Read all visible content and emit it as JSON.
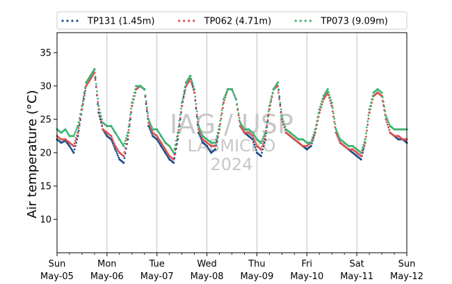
{
  "chart_data": {
    "type": "scatter",
    "title": "",
    "xlabel": "",
    "ylabel": "Air temperature (°C)",
    "xlim": [
      "2024-05-05 00:00",
      "2024-05-12 00:00"
    ],
    "ylim": [
      5,
      38
    ],
    "yticks": [
      10,
      15,
      20,
      25,
      30,
      35
    ],
    "xticks": [
      {
        "day": "Sun",
        "date": "May-05"
      },
      {
        "day": "Mon",
        "date": "May-06"
      },
      {
        "day": "Tue",
        "date": "May-07"
      },
      {
        "day": "Wed",
        "date": "May-08"
      },
      {
        "day": "Thu",
        "date": "May-09"
      },
      {
        "day": "Fri",
        "date": "May-10"
      },
      {
        "day": "Sat",
        "date": "May-11"
      },
      {
        "day": "Sun",
        "date": "May-12"
      }
    ],
    "grid": "vertical",
    "legend": "top",
    "watermark": [
      "IAG / USP",
      "LABMICRO",
      "2024"
    ],
    "series": [
      {
        "name": "TP131 (1.45m)",
        "color": "#1f4e8c",
        "x": [
          "2024-05-05 00:00",
          "2024-05-05 02:00",
          "2024-05-05 04:00",
          "2024-05-05 06:00",
          "2024-05-05 08:00",
          "2024-05-05 10:00",
          "2024-05-05 12:00",
          "2024-05-05 14:00",
          "2024-05-05 16:00",
          "2024-05-05 18:00",
          "2024-05-05 20:00",
          "2024-05-05 22:00",
          "2024-05-06 00:00",
          "2024-05-06 02:00",
          "2024-05-06 04:00",
          "2024-05-06 06:00",
          "2024-05-06 08:00",
          "2024-05-06 10:00",
          "2024-05-06 12:00",
          "2024-05-06 14:00",
          "2024-05-06 16:00",
          "2024-05-06 18:00",
          "2024-05-06 20:00",
          "2024-05-06 22:00",
          "2024-05-07 00:00",
          "2024-05-07 02:00",
          "2024-05-07 04:00",
          "2024-05-07 06:00",
          "2024-05-07 08:00",
          "2024-05-07 10:00",
          "2024-05-07 12:00",
          "2024-05-07 14:00",
          "2024-05-07 16:00",
          "2024-05-07 18:00",
          "2024-05-07 20:00",
          "2024-05-07 22:00",
          "2024-05-08 00:00",
          "2024-05-08 02:00",
          "2024-05-08 04:00",
          "2024-05-08 06:00",
          "2024-05-08 08:00",
          "2024-05-08 10:00",
          "2024-05-08 12:00",
          "2024-05-08 14:00",
          "2024-05-08 16:00",
          "2024-05-08 18:00",
          "2024-05-08 20:00",
          "2024-05-08 22:00",
          "2024-05-09 00:00",
          "2024-05-09 02:00",
          "2024-05-09 04:00",
          "2024-05-09 06:00",
          "2024-05-09 08:00",
          "2024-05-09 10:00",
          "2024-05-09 12:00",
          "2024-05-09 14:00",
          "2024-05-09 16:00",
          "2024-05-09 18:00",
          "2024-05-09 20:00",
          "2024-05-09 22:00",
          "2024-05-10 00:00",
          "2024-05-10 02:00",
          "2024-05-10 04:00",
          "2024-05-10 06:00",
          "2024-05-10 08:00",
          "2024-05-10 10:00",
          "2024-05-10 12:00",
          "2024-05-10 14:00",
          "2024-05-10 16:00",
          "2024-05-10 18:00",
          "2024-05-10 20:00",
          "2024-05-10 22:00",
          "2024-05-11 00:00",
          "2024-05-11 02:00",
          "2024-05-11 04:00",
          "2024-05-11 06:00",
          "2024-05-11 08:00",
          "2024-05-11 10:00",
          "2024-05-11 12:00",
          "2024-05-11 14:00",
          "2024-05-11 16:00",
          "2024-05-11 18:00",
          "2024-05-11 20:00",
          "2024-05-11 22:00",
          "2024-05-12 00:00"
        ],
        "y": [
          22.0,
          21.5,
          21.8,
          21.0,
          20.0,
          22.5,
          26.5,
          30.5,
          31.5,
          32.5,
          26.0,
          23.5,
          22.5,
          22.0,
          20.5,
          19.0,
          18.5,
          22.0,
          27.0,
          29.5,
          30.0,
          29.5,
          24.0,
          22.5,
          22.0,
          21.0,
          20.0,
          19.0,
          18.5,
          22.0,
          27.0,
          30.5,
          31.5,
          29.0,
          23.0,
          21.5,
          21.0,
          20.0,
          20.5,
          23.5,
          27.5,
          29.5,
          29.5,
          28.0,
          24.0,
          23.0,
          22.5,
          22.0,
          20.0,
          19.5,
          22.0,
          26.5,
          29.5,
          30.5,
          25.0,
          23.0,
          22.5,
          22.0,
          21.5,
          21.0,
          20.5,
          21.0,
          23.0,
          26.0,
          28.0,
          29.0,
          27.0,
          23.0,
          21.5,
          21.0,
          20.5,
          20.0,
          19.5,
          19.0,
          21.5,
          26.0,
          28.5,
          29.0,
          28.5,
          25.0,
          23.0,
          22.5,
          22.0,
          22.0,
          21.5
        ]
      },
      {
        "name": "TP062 (4.71m)",
        "color": "#d9534f",
        "x": [
          "2024-05-05 00:00",
          "2024-05-05 02:00",
          "2024-05-05 04:00",
          "2024-05-05 06:00",
          "2024-05-05 08:00",
          "2024-05-05 10:00",
          "2024-05-05 12:00",
          "2024-05-05 14:00",
          "2024-05-05 16:00",
          "2024-05-05 18:00",
          "2024-05-05 20:00",
          "2024-05-05 22:00",
          "2024-05-06 00:00",
          "2024-05-06 02:00",
          "2024-05-06 04:00",
          "2024-05-06 06:00",
          "2024-05-06 08:00",
          "2024-05-06 10:00",
          "2024-05-06 12:00",
          "2024-05-06 14:00",
          "2024-05-06 16:00",
          "2024-05-06 18:00",
          "2024-05-06 20:00",
          "2024-05-06 22:00",
          "2024-05-07 00:00",
          "2024-05-07 02:00",
          "2024-05-07 04:00",
          "2024-05-07 06:00",
          "2024-05-07 08:00",
          "2024-05-07 10:00",
          "2024-05-07 12:00",
          "2024-05-07 14:00",
          "2024-05-07 16:00",
          "2024-05-07 18:00",
          "2024-05-07 20:00",
          "2024-05-07 22:00",
          "2024-05-08 00:00",
          "2024-05-08 02:00",
          "2024-05-08 04:00",
          "2024-05-08 06:00",
          "2024-05-08 08:00",
          "2024-05-08 10:00",
          "2024-05-08 12:00",
          "2024-05-08 14:00",
          "2024-05-08 16:00",
          "2024-05-08 18:00",
          "2024-05-08 20:00",
          "2024-05-08 22:00",
          "2024-05-09 00:00",
          "2024-05-09 02:00",
          "2024-05-09 04:00",
          "2024-05-09 06:00",
          "2024-05-09 08:00",
          "2024-05-09 10:00",
          "2024-05-09 12:00",
          "2024-05-09 14:00",
          "2024-05-09 16:00",
          "2024-05-09 18:00",
          "2024-05-09 20:00",
          "2024-05-09 22:00",
          "2024-05-10 00:00",
          "2024-05-10 02:00",
          "2024-05-10 04:00",
          "2024-05-10 06:00",
          "2024-05-10 08:00",
          "2024-05-10 10:00",
          "2024-05-10 12:00",
          "2024-05-10 14:00",
          "2024-05-10 16:00",
          "2024-05-10 18:00",
          "2024-05-10 20:00",
          "2024-05-10 22:00",
          "2024-05-11 00:00",
          "2024-05-11 02:00",
          "2024-05-11 04:00",
          "2024-05-11 06:00",
          "2024-05-11 08:00",
          "2024-05-11 10:00",
          "2024-05-11 12:00",
          "2024-05-11 14:00",
          "2024-05-11 16:00",
          "2024-05-11 18:00",
          "2024-05-11 20:00",
          "2024-05-11 22:00",
          "2024-05-12 00:00"
        ],
        "y": [
          22.5,
          22.0,
          22.0,
          21.5,
          21.0,
          23.0,
          26.5,
          30.0,
          31.0,
          32.0,
          26.5,
          23.5,
          23.0,
          22.5,
          21.0,
          20.0,
          19.5,
          22.5,
          27.0,
          29.5,
          30.0,
          29.5,
          24.5,
          23.0,
          22.5,
          21.5,
          20.5,
          19.5,
          19.0,
          22.5,
          27.0,
          30.0,
          31.0,
          29.0,
          23.5,
          22.0,
          21.5,
          21.0,
          21.0,
          23.5,
          27.5,
          29.5,
          29.5,
          28.0,
          24.0,
          23.0,
          23.0,
          22.5,
          21.0,
          20.5,
          22.5,
          26.5,
          29.5,
          30.0,
          25.0,
          23.0,
          22.5,
          22.0,
          21.5,
          21.0,
          21.0,
          21.5,
          23.0,
          26.0,
          28.0,
          29.0,
          27.0,
          23.0,
          21.5,
          21.0,
          20.5,
          20.5,
          20.0,
          19.5,
          21.5,
          26.0,
          28.5,
          29.0,
          28.5,
          25.0,
          23.0,
          22.5,
          22.5,
          22.0,
          22.0
        ]
      },
      {
        "name": "TP073 (9.09m)",
        "color": "#3cb371",
        "x": [
          "2024-05-05 00:00",
          "2024-05-05 02:00",
          "2024-05-05 04:00",
          "2024-05-05 06:00",
          "2024-05-05 08:00",
          "2024-05-05 10:00",
          "2024-05-05 12:00",
          "2024-05-05 14:00",
          "2024-05-05 16:00",
          "2024-05-05 18:00",
          "2024-05-05 20:00",
          "2024-05-05 22:00",
          "2024-05-06 00:00",
          "2024-05-06 02:00",
          "2024-05-06 04:00",
          "2024-05-06 06:00",
          "2024-05-06 08:00",
          "2024-05-06 10:00",
          "2024-05-06 12:00",
          "2024-05-06 14:00",
          "2024-05-06 16:00",
          "2024-05-06 18:00",
          "2024-05-06 20:00",
          "2024-05-06 22:00",
          "2024-05-07 00:00",
          "2024-05-07 02:00",
          "2024-05-07 04:00",
          "2024-05-07 06:00",
          "2024-05-07 08:00",
          "2024-05-07 10:00",
          "2024-05-07 12:00",
          "2024-05-07 14:00",
          "2024-05-07 16:00",
          "2024-05-07 18:00",
          "2024-05-07 20:00",
          "2024-05-07 22:00",
          "2024-05-08 00:00",
          "2024-05-08 02:00",
          "2024-05-08 04:00",
          "2024-05-08 06:00",
          "2024-05-08 08:00",
          "2024-05-08 10:00",
          "2024-05-08 12:00",
          "2024-05-08 14:00",
          "2024-05-08 16:00",
          "2024-05-08 18:00",
          "2024-05-08 20:00",
          "2024-05-08 22:00",
          "2024-05-09 00:00",
          "2024-05-09 02:00",
          "2024-05-09 04:00",
          "2024-05-09 06:00",
          "2024-05-09 08:00",
          "2024-05-09 10:00",
          "2024-05-09 12:00",
          "2024-05-09 14:00",
          "2024-05-09 16:00",
          "2024-05-09 18:00",
          "2024-05-09 20:00",
          "2024-05-09 22:00",
          "2024-05-10 00:00",
          "2024-05-10 02:00",
          "2024-05-10 04:00",
          "2024-05-10 06:00",
          "2024-05-10 08:00",
          "2024-05-10 10:00",
          "2024-05-10 12:00",
          "2024-05-10 14:00",
          "2024-05-10 16:00",
          "2024-05-10 18:00",
          "2024-05-10 20:00",
          "2024-05-10 22:00",
          "2024-05-11 00:00",
          "2024-05-11 02:00",
          "2024-05-11 04:00",
          "2024-05-11 06:00",
          "2024-05-11 08:00",
          "2024-05-11 10:00",
          "2024-05-11 12:00",
          "2024-05-11 14:00",
          "2024-05-11 16:00",
          "2024-05-11 18:00",
          "2024-05-11 20:00",
          "2024-05-11 22:00",
          "2024-05-12 00:00"
        ],
        "y": [
          23.5,
          23.0,
          23.5,
          22.5,
          22.5,
          24.0,
          27.0,
          30.5,
          31.5,
          32.5,
          27.0,
          24.5,
          24.0,
          24.0,
          23.0,
          22.0,
          21.0,
          23.0,
          27.5,
          30.0,
          30.0,
          29.5,
          25.0,
          23.5,
          23.5,
          22.5,
          21.5,
          21.0,
          20.0,
          23.0,
          27.5,
          30.5,
          31.5,
          29.5,
          24.0,
          22.5,
          22.0,
          21.5,
          21.5,
          24.0,
          28.0,
          29.5,
          29.5,
          28.0,
          24.5,
          23.5,
          23.5,
          23.0,
          22.0,
          21.5,
          23.0,
          27.0,
          29.5,
          30.5,
          25.5,
          23.5,
          23.0,
          22.5,
          22.0,
          22.0,
          21.5,
          21.5,
          23.5,
          26.5,
          28.5,
          29.5,
          27.5,
          23.5,
          22.0,
          21.5,
          21.0,
          21.0,
          20.5,
          20.0,
          22.0,
          26.5,
          29.0,
          29.5,
          29.0,
          25.5,
          24.0,
          23.5,
          23.5,
          23.5,
          23.5
        ]
      }
    ]
  }
}
